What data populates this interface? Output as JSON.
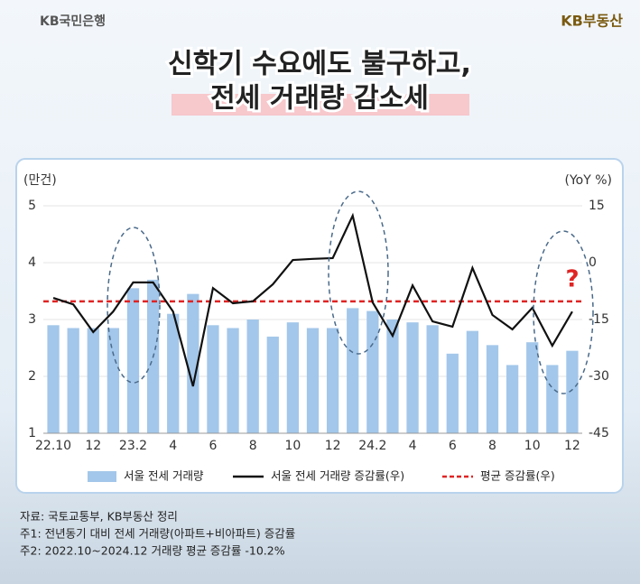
{
  "header": {
    "left_logo": "KB국민은행",
    "right_logo": "KB부동산",
    "title_line1": "신학기 수요에도 불구하고,",
    "title_line2": "전세 거래량 감소세"
  },
  "chart_data": {
    "type": "bar_line",
    "y_label": "(만건)",
    "y2_label": "(YoY %)",
    "categories": [
      "22.10",
      null,
      "12",
      null,
      "23.2",
      null,
      "4",
      null,
      "6",
      null,
      "8",
      null,
      "10",
      null,
      "12",
      null,
      "24.2",
      null,
      "4",
      null,
      "6",
      null,
      "8",
      null,
      "10",
      null,
      "12"
    ],
    "series": [
      {
        "name": "서울 전세 거래량",
        "color": "#a3c7ea",
        "type": "bar",
        "axis": "y",
        "values": [
          2.9,
          2.85,
          2.85,
          2.85,
          3.55,
          3.7,
          3.1,
          3.45,
          2.9,
          2.85,
          3.0,
          2.7,
          2.95,
          2.85,
          2.85,
          3.2,
          3.15,
          3.0,
          2.95,
          2.9,
          2.4,
          2.8,
          2.55,
          2.2,
          2.6,
          2.2,
          2.45
        ]
      },
      {
        "name": "서울 전세 거래량 증감률(우)",
        "color": "#111111",
        "type": "line",
        "axis": "y2",
        "values": [
          -9.3,
          -11,
          -18.3,
          -12.9,
          -5.2,
          -5.2,
          -12.9,
          -32.6,
          -6.7,
          -10.7,
          -10.2,
          -5.7,
          0.7,
          1.0,
          1.2,
          12.4,
          -10.5,
          -19.3,
          -6,
          -15.5,
          -16.9,
          -1.4,
          -13.8,
          -17.6,
          -11.9,
          -21.9,
          -12.9
        ]
      }
    ],
    "reference_line": {
      "name": "평균 증감률(우)",
      "value": -10.2,
      "color": "#e02424",
      "axis": "y2"
    },
    "annotation": "?",
    "ylim": [
      1,
      5
    ],
    "yticks": [
      1,
      2,
      3,
      4,
      5
    ],
    "y2lim": [
      -45,
      15
    ],
    "y2ticks": [
      -45,
      -30,
      -15,
      0,
      15
    ],
    "grid": true
  },
  "notes": [
    "자료: 국토교통부, KB부동산 정리",
    "주1: 전년동기 대비 전세 거래량(아파트+비아파트) 증감률",
    "주2: 2022.10~2024.12 거래량 평균 증감률 -10.2%"
  ]
}
